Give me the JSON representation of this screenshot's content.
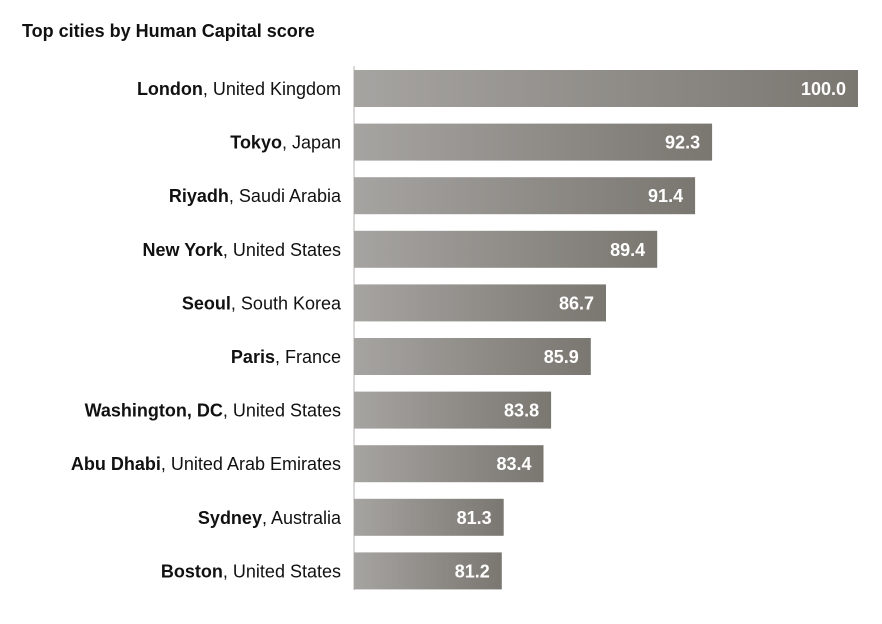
{
  "chart_data": {
    "type": "bar",
    "orientation": "horizontal",
    "title": "Top cities by Human Capital score",
    "categories": [
      {
        "city": "London",
        "country": "United Kingdom"
      },
      {
        "city": "Tokyo",
        "country": "Japan"
      },
      {
        "city": "Riyadh",
        "country": "Saudi Arabia"
      },
      {
        "city": "New York",
        "country": "United States"
      },
      {
        "city": "Seoul",
        "country": "South Korea"
      },
      {
        "city": "Paris",
        "country": "France"
      },
      {
        "city": "Washington, DC",
        "country": "United States"
      },
      {
        "city": "Abu Dhabi",
        "country": "United Arab Emirates"
      },
      {
        "city": "Sydney",
        "country": "Australia"
      },
      {
        "city": "Boston",
        "country": "United States"
      }
    ],
    "values": [
      100.0,
      92.3,
      91.4,
      89.4,
      86.7,
      85.9,
      83.8,
      83.4,
      81.3,
      81.2
    ],
    "value_labels": [
      "100.0",
      "92.3",
      "91.4",
      "89.4",
      "86.7",
      "85.9",
      "83.8",
      "83.4",
      "81.3",
      "81.2"
    ],
    "xlim": [
      73.4,
      100.0
    ],
    "grid": false,
    "legend": "none",
    "colors": {
      "bar_start": "#a6a4a1",
      "bar_end": "#7a7771",
      "value_text": "#ffffff",
      "label_text": "#111111"
    }
  }
}
